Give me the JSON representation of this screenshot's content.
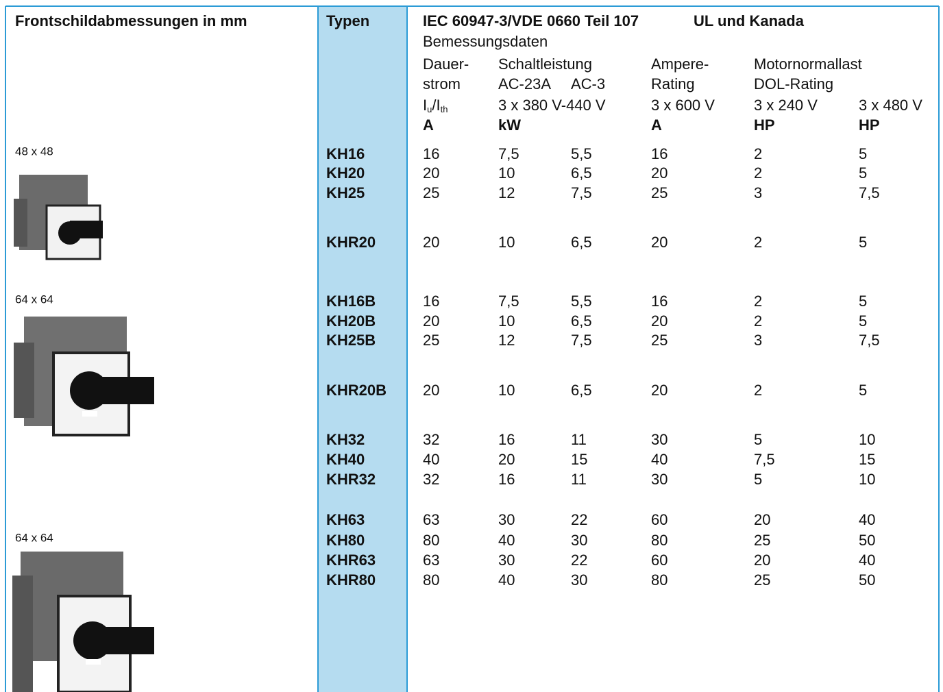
{
  "header": {
    "dimensions_title": "Frontschildabmessungen in mm",
    "types_title": "Typen",
    "standard": "IEC 60947-3/VDE 0660 Teil 107",
    "ul": "UL und Kanada",
    "rating_title": "Bemessungsdaten",
    "cont_current": [
      "Dauer-",
      "strom"
    ],
    "current_symbol": {
      "main": "I",
      "sub1": "u",
      "slash": "/I",
      "sub2": "th"
    },
    "switching": "Schaltleistung",
    "ac23": "AC-23A",
    "ac3": "AC-3",
    "voltage_iec": "3 x 380 V-440 V",
    "ampere": [
      "Ampere-",
      "Rating"
    ],
    "voltage_600": "3 x 600 V",
    "motor": [
      "Motornormallast",
      "DOL-Rating"
    ],
    "voltage_240": "3 x 240 V",
    "voltage_480": "3 x 480 V",
    "units": [
      "A",
      "kW",
      "A",
      "HP",
      "HP"
    ]
  },
  "sizes": [
    "48 x 48",
    "64 x 64",
    "64 x 64"
  ],
  "table": {
    "rows": [
      {
        "type": "KH16",
        "values": [
          "16",
          "7,5",
          "5,5",
          "16",
          "2",
          "5"
        ]
      },
      {
        "type": "KH20",
        "values": [
          "20",
          "10",
          "6,5",
          "20",
          "2",
          "5"
        ]
      },
      {
        "type": "KH25",
        "values": [
          "25",
          "12",
          "7,5",
          "25",
          "3",
          "7,5"
        ]
      },
      {
        "type": "KHR20",
        "values": [
          "20",
          "10",
          "6,5",
          "20",
          "2",
          "5"
        ]
      },
      {
        "type": "KH16B",
        "values": [
          "16",
          "7,5",
          "5,5",
          "16",
          "2",
          "5"
        ]
      },
      {
        "type": "KH20B",
        "values": [
          "20",
          "10",
          "6,5",
          "20",
          "2",
          "5"
        ]
      },
      {
        "type": "KH25B",
        "values": [
          "25",
          "12",
          "7,5",
          "25",
          "3",
          "7,5"
        ]
      },
      {
        "type": "KHR20B",
        "values": [
          "20",
          "10",
          "6,5",
          "20",
          "2",
          "5"
        ]
      },
      {
        "type": "KH32",
        "values": [
          "32",
          "16",
          "11",
          "30",
          "5",
          "10"
        ]
      },
      {
        "type": "KH40",
        "values": [
          "40",
          "20",
          "15",
          "40",
          "7,5",
          "15"
        ]
      },
      {
        "type": "KHR32",
        "values": [
          "32",
          "16",
          "11",
          "30",
          "5",
          "10"
        ]
      },
      {
        "type": "KH63",
        "values": [
          "63",
          "30",
          "22",
          "60",
          "20",
          "40"
        ]
      },
      {
        "type": "KH80",
        "values": [
          "80",
          "40",
          "30",
          "80",
          "25",
          "50"
        ]
      },
      {
        "type": "KHR63",
        "values": [
          "63",
          "30",
          "22",
          "60",
          "20",
          "40"
        ]
      },
      {
        "type": "KHR80",
        "values": [
          "80",
          "40",
          "30",
          "80",
          "25",
          "50"
        ]
      }
    ]
  }
}
